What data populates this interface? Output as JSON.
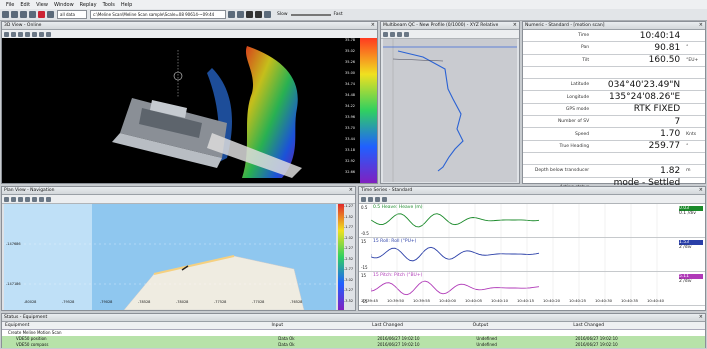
{
  "menu": [
    "File",
    "Edit",
    "View",
    "Window",
    "Replay",
    "Tools",
    "Help"
  ],
  "toolbar": {
    "source_field": "all data",
    "path_field": "c:\\Meline Scan\\Meline Scan sample\\Scale=08 90614-~09:44",
    "slow_label": "Slow",
    "fast_label": "Fast"
  },
  "view3d": {
    "title": "3D View - Online",
    "depth_scale": [
      "35.78",
      "35.02",
      "35.26",
      "35.00",
      "34.74",
      "34.48",
      "34.22",
      "33.96",
      "33.70",
      "33.44",
      "33.18",
      "32.92",
      "32.66"
    ]
  },
  "qc": {
    "title": "Multibeam QC - New Profile (0/1000) - XYZ Relative"
  },
  "numeric": {
    "title": "Numeric - Standard - [motion scan]",
    "rows": [
      {
        "label": "Time",
        "value": "10:40:14",
        "unit": ""
      },
      {
        "label": "Pan",
        "value": "90.81",
        "unit": "°"
      },
      {
        "label": "Tilt",
        "value": "160.50",
        "unit": "°EU+"
      },
      {
        "label": "",
        "value": "",
        "unit": ""
      },
      {
        "label": "Latitude",
        "value": "034°40'23.49\"N",
        "unit": ""
      },
      {
        "label": "Longitude",
        "value": "135°24'08.26\"E",
        "unit": ""
      },
      {
        "label": "GPS mode",
        "value": "RTK FIXED",
        "unit": ""
      },
      {
        "label": "Number of SV",
        "value": "7",
        "unit": ""
      },
      {
        "label": "Speed",
        "value": "1.70",
        "unit": "Knts"
      },
      {
        "label": "True Heading",
        "value": "259.77",
        "unit": "°"
      },
      {
        "label": "",
        "value": "",
        "unit": ""
      },
      {
        "label": "Depth below transducer",
        "value": "1.82",
        "unit": "m"
      },
      {
        "label": "Acting status",
        "value": "mode - Settled condition",
        "unit": ""
      }
    ]
  },
  "plan": {
    "title": "Plan View - Navigation",
    "y_labels": [
      "-147686",
      "-147186"
    ],
    "x_labels": [
      "-80028",
      "-79528",
      "-79028",
      "-78528",
      "-78028",
      "-77528",
      "-77028",
      "-76528"
    ],
    "scale": [
      "-1.27",
      "-1.52",
      "-1.77",
      "-2.02",
      "-2.27",
      "-2.52",
      "-2.77",
      "-3.02",
      "-3.27",
      "-3.52"
    ]
  },
  "timeseries": {
    "title": "Time Series - Standard",
    "series": [
      {
        "name": "0.5 Heave: Heave (m)",
        "top": "0.5",
        "bottom": "-0.5",
        "color": "#1a8a2a",
        "box_value": "0.03",
        "box_unit": "0.1 /div"
      },
      {
        "name": "15 Roll: Roll (°PU+)",
        "top": "15",
        "bottom": "-15",
        "color": "#2a3fa8",
        "box_value": "1.53",
        "box_unit": "2 /div"
      },
      {
        "name": "15 Pitch: Pitch (°BU+)",
        "top": "15",
        "bottom": "-15",
        "color": "#b03ab8",
        "box_value": "5.11",
        "box_unit": "2 /div"
      }
    ],
    "times": [
      "10:39:45",
      "10:39:50",
      "10:39:55",
      "10:40:00",
      "10:40:05",
      "10:40:10",
      "10:40:15",
      "10:40:20",
      "10:40:25",
      "10:40:30",
      "10:40:35",
      "10:40:40"
    ]
  },
  "status": {
    "title": "Status - Equipment",
    "headers": [
      "Equipment",
      "Input",
      "Last Changed",
      "Output",
      "Last Changed"
    ],
    "rows": [
      {
        "equipment": "Create Meline Motion Scan",
        "input": "",
        "changed": "",
        "output": "",
        "changed2": ""
      },
      {
        "equipment": "VDE50 position",
        "input": "Data Ok",
        "changed": "2016/06/27 19:02:10",
        "output": "Undefined",
        "changed2": "2016/06/27 19:02:10"
      },
      {
        "equipment": "VDE50 compass",
        "input": "Data Ok",
        "changed": "2016/06/27 19:02:10",
        "output": "Undefined",
        "changed2": "2016/06/27 19:02:10"
      }
    ]
  },
  "colors": {
    "accent": "#2b7de0",
    "status_ok": "#3aa83a"
  }
}
